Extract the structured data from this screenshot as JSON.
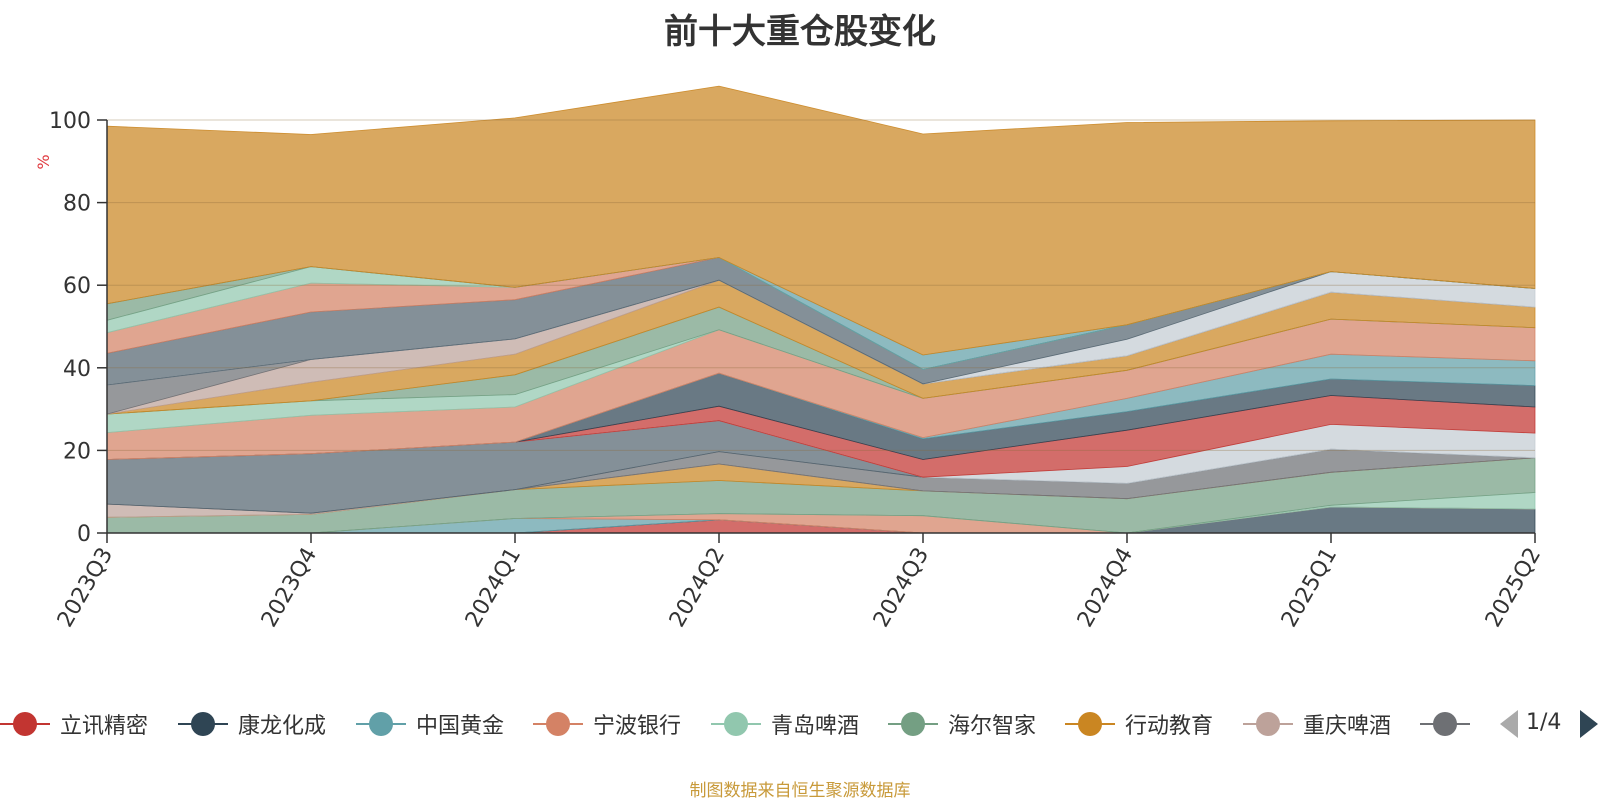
{
  "chart_data": {
    "type": "area",
    "title": "前十大重仓股变化",
    "ylabel": "%",
    "ylim": [
      0,
      100
    ],
    "yticks": [
      0,
      20,
      40,
      60,
      80,
      100
    ],
    "categories": [
      "2023Q3",
      "2023Q4",
      "2024Q1",
      "2024Q2",
      "2024Q3",
      "2024Q4",
      "2025Q1",
      "2025Q2"
    ],
    "grid": true,
    "stacked": true,
    "series": [
      {
        "name": "立讯精密",
        "color": "#c23531",
        "values": [
          0,
          0,
          0,
          3.2,
          0,
          0,
          0,
          0
        ]
      },
      {
        "name": "康龙化成",
        "color": "#2f4554",
        "values": [
          0,
          0,
          0,
          0,
          0,
          0,
          6.3,
          5.8
        ]
      },
      {
        "name": "中国黄金",
        "color": "#61a0a8",
        "values": [
          0,
          0,
          3.5,
          0,
          0,
          0,
          0,
          0
        ]
      },
      {
        "name": "宁波银行",
        "color": "#d48265",
        "values": [
          0,
          0,
          0,
          1.5,
          4.2,
          0,
          0,
          0
        ]
      },
      {
        "name": "青岛啤酒",
        "color": "#91c7ae",
        "values": [
          0,
          0,
          0,
          0,
          0,
          0,
          0.4,
          4
        ]
      },
      {
        "name": "海尔智家",
        "color": "#749f83",
        "values": [
          3.8,
          4.5,
          7,
          8,
          6,
          8.3,
          8,
          8.4
        ]
      },
      {
        "name": "行动教育",
        "color": "#ca8622",
        "values": [
          0,
          0,
          0,
          4,
          0,
          0,
          0,
          0
        ]
      },
      {
        "name": "重庆啤酒",
        "color": "#bda29a",
        "values": [
          3.2,
          0.3,
          0,
          0,
          0,
          0,
          0,
          0
        ]
      },
      {
        "name": "",
        "color": "#6e7074",
        "values": [
          0,
          0,
          0,
          3,
          3.3,
          3.7,
          5.6,
          0
        ]
      },
      {
        "name": "",
        "color": "#546570",
        "values": [
          10.8,
          14.4,
          11.5,
          7.5,
          0,
          0,
          0,
          0
        ]
      },
      {
        "name": "",
        "color": "#c4ccd3",
        "values": [
          0,
          0,
          0,
          0,
          0,
          4.1,
          6,
          6
        ]
      },
      {
        "name": "",
        "color": "#c23531",
        "values": [
          0,
          0,
          0,
          3.5,
          4.3,
          8.8,
          7,
          6.3
        ]
      },
      {
        "name": "",
        "color": "#2f4554",
        "values": [
          0,
          0,
          0,
          8,
          5,
          4.5,
          4,
          5.2
        ]
      },
      {
        "name": "",
        "color": "#61a0a8",
        "values": [
          0,
          0,
          0,
          0,
          0.3,
          3.2,
          6,
          6
        ]
      },
      {
        "name": "",
        "color": "#d48265",
        "values": [
          6.5,
          9.3,
          8.5,
          10.5,
          9.5,
          6.8,
          8.5,
          8
        ]
      },
      {
        "name": "",
        "color": "#91c7ae",
        "values": [
          4.5,
          3.5,
          3,
          0,
          0,
          0,
          0,
          0
        ]
      },
      {
        "name": "",
        "color": "#749f83",
        "values": [
          0,
          0,
          4.8,
          5.5,
          0,
          0,
          0,
          0
        ]
      },
      {
        "name": "",
        "color": "#ca8622",
        "values": [
          0,
          4.5,
          5,
          6.5,
          3.5,
          3.5,
          6.5,
          5
        ]
      },
      {
        "name": "",
        "color": "#bda29a",
        "values": [
          0,
          5.5,
          3.7,
          0,
          0,
          0,
          0,
          0
        ]
      },
      {
        "name": "",
        "color": "#6e7074",
        "values": [
          7,
          0,
          0,
          0,
          0,
          0,
          0,
          0
        ]
      },
      {
        "name": "",
        "color": "#c4ccd3",
        "values": [
          0,
          0,
          0,
          0,
          0,
          4,
          5,
          4.5
        ]
      },
      {
        "name": "",
        "color": "#546570",
        "values": [
          7.7,
          11.5,
          9.5,
          5.5,
          3.5,
          3.5,
          0,
          0
        ]
      },
      {
        "name": "",
        "color": "#d48265",
        "values": [
          5,
          7,
          3,
          0,
          0,
          0,
          0,
          0
        ]
      },
      {
        "name": "",
        "color": "#91c7ae",
        "values": [
          3,
          4,
          0,
          0,
          0,
          0,
          0,
          0
        ]
      },
      {
        "name": "",
        "color": "#749f83",
        "values": [
          4,
          0,
          0,
          0,
          0,
          0,
          0,
          0
        ]
      },
      {
        "name": "",
        "color": "#61a0a8",
        "values": [
          0,
          0,
          0,
          0,
          3.5,
          0,
          0,
          0
        ]
      },
      {
        "name": "",
        "color": "#ca8622",
        "values": [
          43,
          32,
          41,
          41.5,
          53.5,
          49,
          36.5,
          40.8
        ]
      }
    ]
  },
  "legend": {
    "items": [
      {
        "label": "立讯精密",
        "color": "#c23531"
      },
      {
        "label": "康龙化成",
        "color": "#2f4554"
      },
      {
        "label": "中国黄金",
        "color": "#61a0a8"
      },
      {
        "label": "宁波银行",
        "color": "#d48265"
      },
      {
        "label": "青岛啤酒",
        "color": "#91c7ae"
      },
      {
        "label": "海尔智家",
        "color": "#749f83"
      },
      {
        "label": "行动教育",
        "color": "#ca8622"
      },
      {
        "label": "重庆啤酒",
        "color": "#bda29a"
      },
      {
        "label": "",
        "color": "#6e7074"
      }
    ],
    "page_info": "1/4"
  },
  "source_note": "制图数据来自恒生聚源数据库"
}
